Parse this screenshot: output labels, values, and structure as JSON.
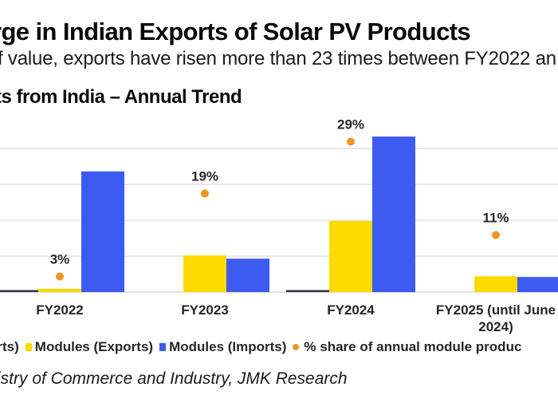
{
  "header": {
    "title": "rge in Indian Exports of Solar PV Products",
    "subtitle": "f value, exports have risen more than 23 times between FY2022 an",
    "chart_title": "ts from India – Annual Trend"
  },
  "source": "istry of Commerce and Industry, JMK Research",
  "colors": {
    "cells": "#2e3440",
    "exports": "#ffd900",
    "imports": "#3d5af1",
    "share": "#f39423",
    "grid": "#dcdcdc",
    "text": "#262626"
  },
  "chart_data": {
    "type": "bar",
    "title": "ts from India – Annual Trend",
    "categories": [
      "FY2022",
      "FY2023",
      "FY2024",
      "FY2025 (until June 2024)"
    ],
    "category_lines": [
      [
        "FY2022"
      ],
      [
        "FY2023"
      ],
      [
        "FY2024"
      ],
      [
        "FY2025 (until June",
        "2024)"
      ]
    ],
    "y_axis_note": "Primary axis tick labels are cropped out of view; values below are expressed in gridline-interval units (each gridline = 1 unit).",
    "ylim": [
      0,
      4.4
    ],
    "gridlines": [
      1,
      2,
      3,
      4
    ],
    "grid": true,
    "series": [
      {
        "name": "...orts)",
        "key": "cells",
        "values": [
          0.02,
          0,
          0.04,
          0
        ]
      },
      {
        "name": "Modules (Exports)",
        "key": "exports",
        "values": [
          0.09,
          1.02,
          1.98,
          0.44
        ]
      },
      {
        "name": "Modules (Imports)",
        "key": "imports",
        "values": [
          3.36,
          0.93,
          4.33,
          0.42
        ]
      }
    ],
    "secondary_series": {
      "name": "% share of annual module produc",
      "key": "share",
      "type": "scatter",
      "values": [
        3,
        19,
        29,
        11
      ],
      "labels": [
        "3%",
        "19%",
        "29%",
        "11%"
      ]
    },
    "legend": {
      "position": "bottom",
      "entries": [
        "orts)",
        "Modules (Exports)",
        "Modules (Imports)",
        "% share of annual module produc"
      ]
    }
  }
}
